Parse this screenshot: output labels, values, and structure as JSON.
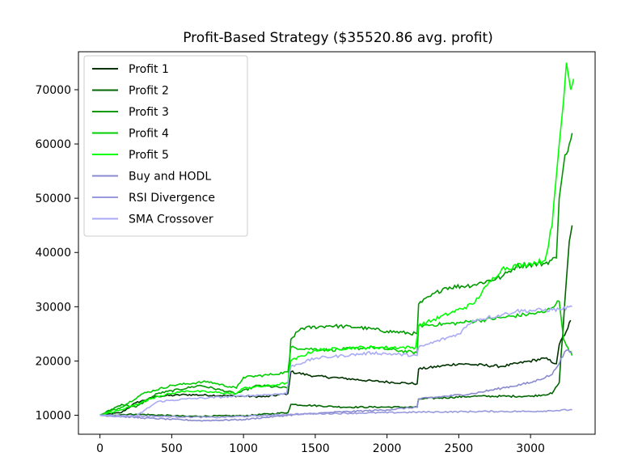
{
  "chart_data": {
    "type": "line",
    "title": "Profit-Based Strategy ($35520.86 avg. profit)",
    "xlabel": "",
    "ylabel": "",
    "xlim": [
      -150,
      3450
    ],
    "ylim": [
      6500,
      77000
    ],
    "xticks": [
      0,
      500,
      1000,
      1500,
      2000,
      2500,
      3000
    ],
    "yticks": [
      10000,
      20000,
      30000,
      40000,
      50000,
      60000,
      70000
    ],
    "grid": false,
    "legend_position": "top-left",
    "series": [
      {
        "name": "Profit 1",
        "color": "#003300",
        "points": [
          [
            0,
            10000
          ],
          [
            150,
            10500
          ],
          [
            250,
            12300
          ],
          [
            400,
            13500
          ],
          [
            600,
            13800
          ],
          [
            900,
            13600
          ],
          [
            1150,
            13400
          ],
          [
            1310,
            14000
          ],
          [
            1330,
            18000
          ],
          [
            1500,
            17200
          ],
          [
            1700,
            16800
          ],
          [
            1900,
            16300
          ],
          [
            2210,
            15800
          ],
          [
            2220,
            18500
          ],
          [
            2500,
            19500
          ],
          [
            2800,
            19000
          ],
          [
            3100,
            20500
          ],
          [
            3180,
            19500
          ],
          [
            3200,
            23000
          ],
          [
            3250,
            25500
          ],
          [
            3280,
            27500
          ]
        ]
      },
      {
        "name": "Profit 2",
        "color": "#006600",
        "points": [
          [
            0,
            10000
          ],
          [
            250,
            10200
          ],
          [
            600,
            9800
          ],
          [
            1000,
            9900
          ],
          [
            1310,
            10500
          ],
          [
            1330,
            12000
          ],
          [
            1700,
            11500
          ],
          [
            2210,
            11500
          ],
          [
            2220,
            13000
          ],
          [
            2600,
            13500
          ],
          [
            3000,
            13500
          ],
          [
            3150,
            14000
          ],
          [
            3200,
            16000
          ],
          [
            3250,
            35000
          ],
          [
            3270,
            42000
          ],
          [
            3290,
            45000
          ]
        ]
      },
      {
        "name": "Profit 3",
        "color": "#009900",
        "points": [
          [
            0,
            10000
          ],
          [
            150,
            12000
          ],
          [
            250,
            11500
          ],
          [
            400,
            14000
          ],
          [
            700,
            15500
          ],
          [
            950,
            14000
          ],
          [
            1100,
            15500
          ],
          [
            1310,
            15000
          ],
          [
            1330,
            24000
          ],
          [
            1400,
            26000
          ],
          [
            1600,
            26500
          ],
          [
            1800,
            26200
          ],
          [
            2000,
            25500
          ],
          [
            2210,
            25000
          ],
          [
            2220,
            30500
          ],
          [
            2400,
            33500
          ],
          [
            2600,
            34000
          ],
          [
            2800,
            35500
          ],
          [
            2900,
            37500
          ],
          [
            3100,
            38000
          ],
          [
            3180,
            39000
          ],
          [
            3200,
            50000
          ],
          [
            3240,
            58000
          ],
          [
            3270,
            60000
          ],
          [
            3290,
            62000
          ]
        ]
      },
      {
        "name": "Profit 4",
        "color": "#00cc00",
        "points": [
          [
            0,
            10000
          ],
          [
            150,
            11500
          ],
          [
            300,
            14000
          ],
          [
            500,
            15500
          ],
          [
            750,
            16200
          ],
          [
            950,
            15000
          ],
          [
            1000,
            17000
          ],
          [
            1200,
            17500
          ],
          [
            1310,
            18000
          ],
          [
            1330,
            22500
          ],
          [
            1600,
            22000
          ],
          [
            1900,
            22500
          ],
          [
            2210,
            21500
          ],
          [
            2220,
            26500
          ],
          [
            2500,
            27000
          ],
          [
            2800,
            28000
          ],
          [
            3100,
            29000
          ],
          [
            3200,
            31000
          ],
          [
            3230,
            24000
          ],
          [
            3260,
            22500
          ],
          [
            3290,
            21000
          ]
        ]
      },
      {
        "name": "Profit 5",
        "color": "#00ff00",
        "points": [
          [
            0,
            10000
          ],
          [
            150,
            11000
          ],
          [
            250,
            12000
          ],
          [
            400,
            13500
          ],
          [
            600,
            14500
          ],
          [
            950,
            14000
          ],
          [
            1000,
            15000
          ],
          [
            1200,
            15500
          ],
          [
            1310,
            16000
          ],
          [
            1330,
            20000
          ],
          [
            1500,
            22000
          ],
          [
            1800,
            22500
          ],
          [
            2200,
            22500
          ],
          [
            2220,
            26500
          ],
          [
            2600,
            30500
          ],
          [
            2700,
            34000
          ],
          [
            2800,
            37000
          ],
          [
            3000,
            38000
          ],
          [
            3100,
            38500
          ],
          [
            3150,
            45000
          ],
          [
            3200,
            60000
          ],
          [
            3230,
            68000
          ],
          [
            3250,
            75000
          ],
          [
            3280,
            70000
          ],
          [
            3300,
            72000
          ]
        ]
      },
      {
        "name": "Buy and HODL",
        "color": "#8a8ad0",
        "points": [
          [
            0,
            10000
          ],
          [
            300,
            9500
          ],
          [
            700,
            9000
          ],
          [
            1000,
            9200
          ],
          [
            1310,
            10000
          ],
          [
            1600,
            10500
          ],
          [
            2000,
            11000
          ],
          [
            2210,
            11500
          ],
          [
            2220,
            13000
          ],
          [
            2600,
            14000
          ],
          [
            2800,
            15000
          ],
          [
            3000,
            16000
          ],
          [
            3150,
            17500
          ],
          [
            3250,
            22000
          ],
          [
            3290,
            21500
          ]
        ]
      },
      {
        "name": "RSI Divergence",
        "color": "#9999dd",
        "points": [
          [
            0,
            10000
          ],
          [
            400,
            9800
          ],
          [
            800,
            9600
          ],
          [
            1200,
            10000
          ],
          [
            1330,
            10200
          ],
          [
            1800,
            10400
          ],
          [
            2300,
            10600
          ],
          [
            2700,
            10700
          ],
          [
            3000,
            10700
          ],
          [
            3290,
            11000
          ]
        ]
      },
      {
        "name": "SMA Crossover",
        "color": "#aaaaf5",
        "points": [
          [
            0,
            10000
          ],
          [
            250,
            9800
          ],
          [
            400,
            12500
          ],
          [
            600,
            13000
          ],
          [
            950,
            13500
          ],
          [
            1300,
            14000
          ],
          [
            1330,
            19000
          ],
          [
            1500,
            20500
          ],
          [
            1900,
            21500
          ],
          [
            2210,
            21000
          ],
          [
            2220,
            22500
          ],
          [
            2500,
            25000
          ],
          [
            2600,
            27500
          ],
          [
            2700,
            28000
          ],
          [
            2800,
            28500
          ],
          [
            2900,
            29200
          ],
          [
            3200,
            29500
          ],
          [
            3290,
            30000
          ]
        ]
      }
    ]
  }
}
